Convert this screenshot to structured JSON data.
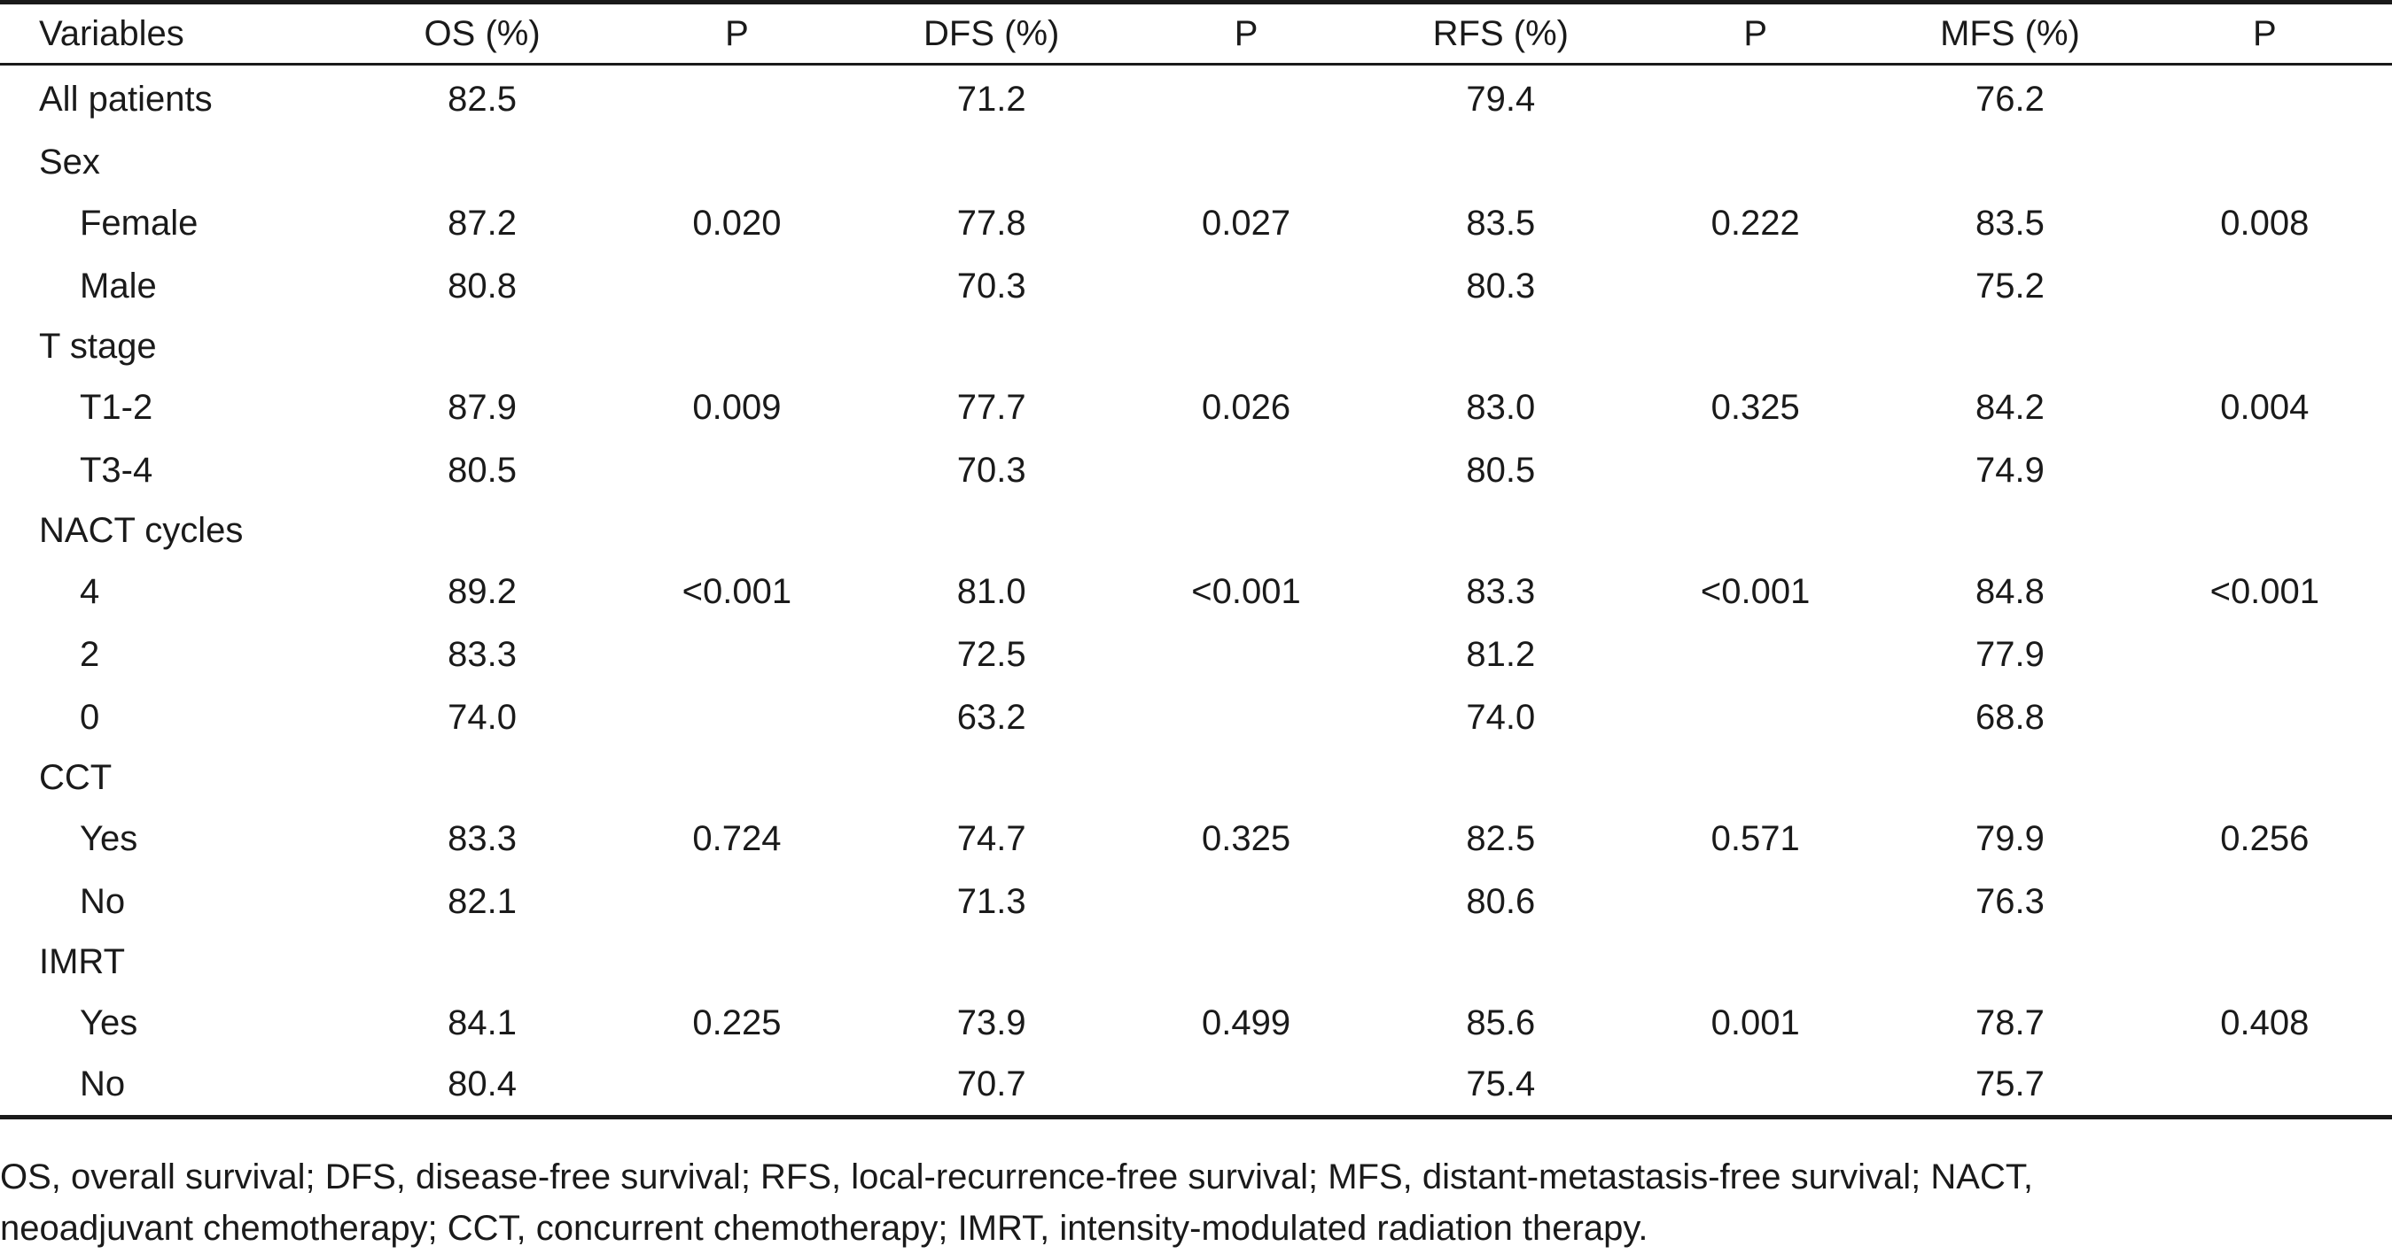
{
  "table": {
    "headers": [
      "Variables",
      "OS (%)",
      "P",
      "DFS (%)",
      "P",
      "RFS (%)",
      "P",
      "MFS (%)",
      "P"
    ],
    "rows": [
      {
        "type": "data",
        "indent": false,
        "cells": [
          "All patients",
          "82.5",
          "",
          "71.2",
          "",
          "79.4",
          "",
          "76.2",
          ""
        ]
      },
      {
        "type": "category",
        "indent": false,
        "cells": [
          "Sex",
          "",
          "",
          "",
          "",
          "",
          "",
          "",
          ""
        ]
      },
      {
        "type": "data",
        "indent": true,
        "cells": [
          "Female",
          "87.2",
          "0.020",
          "77.8",
          "0.027",
          "83.5",
          "0.222",
          "83.5",
          "0.008"
        ]
      },
      {
        "type": "data",
        "indent": true,
        "cells": [
          "Male",
          "80.8",
          "",
          "70.3",
          "",
          "80.3",
          "",
          "75.2",
          ""
        ]
      },
      {
        "type": "category",
        "indent": false,
        "cells": [
          "T stage",
          "",
          "",
          "",
          "",
          "",
          "",
          "",
          ""
        ]
      },
      {
        "type": "data",
        "indent": true,
        "cells": [
          "T1-2",
          "87.9",
          "0.009",
          "77.7",
          "0.026",
          "83.0",
          "0.325",
          "84.2",
          "0.004"
        ]
      },
      {
        "type": "data",
        "indent": true,
        "cells": [
          "T3-4",
          "80.5",
          "",
          "70.3",
          "",
          "80.5",
          "",
          "74.9",
          ""
        ]
      },
      {
        "type": "category",
        "indent": false,
        "cells": [
          "NACT cycles",
          "",
          "",
          "",
          "",
          "",
          "",
          "",
          ""
        ]
      },
      {
        "type": "data",
        "indent": true,
        "cells": [
          "4",
          "89.2",
          "<0.001",
          "81.0",
          "<0.001",
          "83.3",
          "<0.001",
          "84.8",
          "<0.001"
        ]
      },
      {
        "type": "data",
        "indent": true,
        "cells": [
          "2",
          "83.3",
          "",
          "72.5",
          "",
          "81.2",
          "",
          "77.9",
          ""
        ]
      },
      {
        "type": "data",
        "indent": true,
        "cells": [
          "0",
          "74.0",
          "",
          "63.2",
          "",
          "74.0",
          "",
          "68.8",
          ""
        ]
      },
      {
        "type": "category",
        "indent": false,
        "cells": [
          "CCT",
          "",
          "",
          "",
          "",
          "",
          "",
          "",
          ""
        ]
      },
      {
        "type": "data",
        "indent": true,
        "cells": [
          "Yes",
          "83.3",
          "0.724",
          "74.7",
          "0.325",
          "82.5",
          "0.571",
          "79.9",
          "0.256"
        ]
      },
      {
        "type": "data",
        "indent": true,
        "cells": [
          "No",
          "82.1",
          "",
          "71.3",
          "",
          "80.6",
          "",
          "76.3",
          ""
        ]
      },
      {
        "type": "category",
        "indent": false,
        "cells": [
          "IMRT",
          "",
          "",
          "",
          "",
          "",
          "",
          "",
          ""
        ]
      },
      {
        "type": "data",
        "indent": true,
        "cells": [
          "Yes",
          "84.1",
          "0.225",
          "73.9",
          "0.499",
          "85.6",
          "0.001",
          "78.7",
          "0.408"
        ]
      },
      {
        "type": "data",
        "indent": true,
        "cells": [
          "No",
          "80.4",
          "",
          "70.7",
          "",
          "75.4",
          "",
          "75.7",
          ""
        ]
      }
    ]
  },
  "footnote": {
    "line1": "OS, overall survival; DFS, disease-free survival; RFS, local-recurrence-free survival; MFS, distant-metastasis-free survival; NACT,",
    "line2": "neoadjuvant chemotherapy; CCT, concurrent chemotherapy; IMRT, intensity-modulated radiation therapy."
  }
}
